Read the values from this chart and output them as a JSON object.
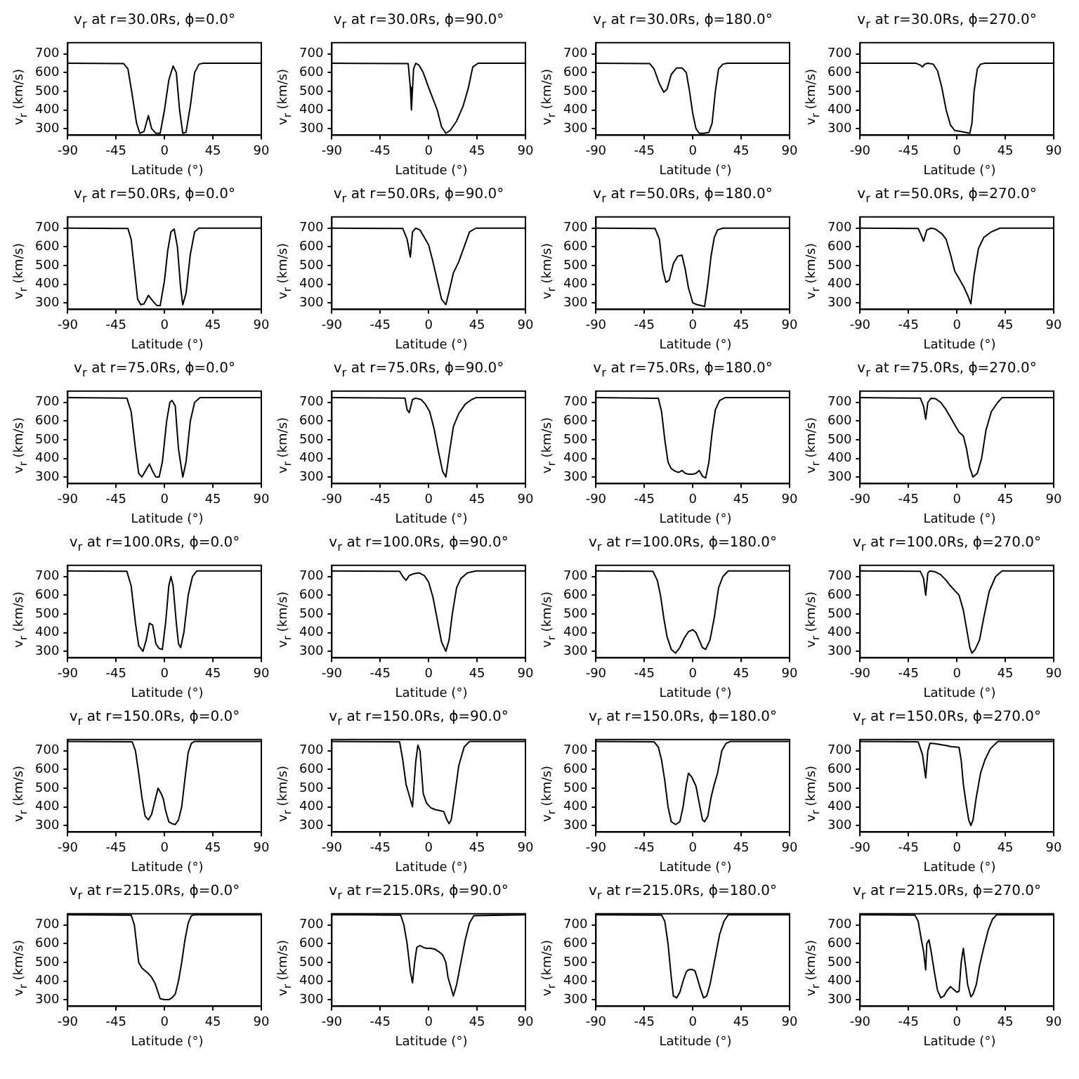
{
  "chart_data": [
    {
      "type": "line",
      "title": "v$_{r}$ at r=30.0Rs, ϕ=0.0°",
      "xlabel": "Latitude (°)",
      "ylabel": "v$_{r}$ (km/s)",
      "color": "#000000",
      "xlim": [
        -90,
        90
      ],
      "xticks": [
        -90,
        -45,
        0,
        45,
        90
      ],
      "ylim": [
        265,
        760
      ],
      "yticks": [
        300,
        400,
        500,
        600,
        700
      ],
      "grid": false,
      "x": [
        -90,
        -38,
        -34,
        -30,
        -26,
        -23,
        -19,
        -15,
        -12,
        -8,
        -4,
        0,
        4,
        8,
        11,
        14,
        17,
        20,
        24,
        28,
        32,
        36,
        90
      ],
      "values": [
        650,
        648,
        620,
        480,
        330,
        275,
        285,
        370,
        300,
        275,
        275,
        400,
        560,
        635,
        600,
        400,
        275,
        280,
        420,
        600,
        645,
        650,
        650
      ]
    },
    {
      "type": "line",
      "title": "v$_{r}$ at r=30.0Rs, ϕ=90.0°",
      "xlabel": "Latitude (°)",
      "ylabel": "v$_{r}$ (km/s)",
      "color": "#000000",
      "xlim": [
        -90,
        90
      ],
      "xticks": [
        -90,
        -45,
        0,
        45,
        90
      ],
      "ylim": [
        265,
        760
      ],
      "yticks": [
        300,
        400,
        500,
        600,
        700
      ],
      "grid": false,
      "x": [
        -90,
        -19,
        -17,
        -16,
        -14,
        -12,
        -9,
        -5,
        0,
        4,
        8,
        12,
        16,
        20,
        26,
        32,
        37,
        41,
        46,
        90
      ],
      "values": [
        650,
        648,
        520,
        400,
        620,
        650,
        640,
        600,
        520,
        460,
        400,
        310,
        275,
        290,
        340,
        420,
        520,
        630,
        650,
        650
      ]
    },
    {
      "type": "line",
      "title": "v$_{r}$ at r=30.0Rs, ϕ=180.0°",
      "xlabel": "Latitude (°)",
      "ylabel": "v$_{r}$ (km/s)",
      "color": "#000000",
      "xlim": [
        -90,
        90
      ],
      "xticks": [
        -90,
        -45,
        0,
        45,
        90
      ],
      "ylim": [
        265,
        760
      ],
      "yticks": [
        300,
        400,
        500,
        600,
        700
      ],
      "grid": false,
      "x": [
        -90,
        -40,
        -36,
        -31,
        -27,
        -24,
        -20,
        -15,
        -10,
        -6,
        -3,
        0,
        3,
        6,
        10,
        15,
        18,
        21,
        24,
        28,
        32,
        90
      ],
      "values": [
        650,
        648,
        620,
        540,
        495,
        510,
        590,
        625,
        625,
        600,
        500,
        380,
        300,
        275,
        275,
        280,
        330,
        500,
        620,
        645,
        650,
        650
      ]
    },
    {
      "type": "line",
      "title": "v$_{r}$ at r=30.0Rs, ϕ=270.0°",
      "xlabel": "Latitude (°)",
      "ylabel": "v$_{r}$ (km/s)",
      "color": "#000000",
      "xlim": [
        -90,
        90
      ],
      "xticks": [
        -90,
        -45,
        0,
        45,
        90
      ],
      "ylim": [
        265,
        760
      ],
      "yticks": [
        300,
        400,
        500,
        600,
        700
      ],
      "grid": false,
      "x": [
        -90,
        -38,
        -34,
        -32,
        -30,
        -27,
        -22,
        -18,
        -14,
        -10,
        -6,
        -2,
        3,
        8,
        12,
        14,
        16,
        19,
        22,
        26,
        90
      ],
      "values": [
        650,
        650,
        640,
        630,
        645,
        650,
        645,
        610,
        520,
        400,
        320,
        290,
        285,
        280,
        275,
        330,
        500,
        620,
        645,
        650,
        650
      ]
    },
    {
      "type": "line",
      "title": "v$_{r}$ at r=50.0Rs, ϕ=0.0°",
      "xlabel": "Latitude (°)",
      "ylabel": "v$_{r}$ (km/s)",
      "color": "#000000",
      "xlim": [
        -90,
        90
      ],
      "xticks": [
        -90,
        -45,
        0,
        45,
        90
      ],
      "ylim": [
        265,
        760
      ],
      "yticks": [
        300,
        400,
        500,
        600,
        700
      ],
      "grid": false,
      "x": [
        -90,
        -34,
        -31,
        -28,
        -25,
        -22,
        -19,
        -15,
        -11,
        -7,
        -4,
        0,
        3,
        6,
        9,
        12,
        15,
        17,
        20,
        24,
        28,
        32,
        90
      ],
      "values": [
        700,
        698,
        640,
        480,
        320,
        290,
        295,
        340,
        310,
        285,
        285,
        420,
        580,
        680,
        695,
        600,
        380,
        290,
        350,
        560,
        680,
        700,
        700
      ]
    },
    {
      "type": "line",
      "title": "v$_{r}$ at r=50.0Rs, ϕ=90.0°",
      "xlabel": "Latitude (°)",
      "ylabel": "v$_{r}$ (km/s)",
      "color": "#000000",
      "xlim": [
        -90,
        90
      ],
      "xticks": [
        -90,
        -45,
        0,
        45,
        90
      ],
      "ylim": [
        265,
        760
      ],
      "yticks": [
        300,
        400,
        500,
        600,
        700
      ],
      "grid": false,
      "x": [
        -90,
        -24,
        -20,
        -17,
        -15,
        -12,
        -8,
        -4,
        0,
        4,
        8,
        12,
        16,
        19,
        23,
        28,
        33,
        38,
        44,
        90
      ],
      "values": [
        700,
        698,
        640,
        545,
        680,
        700,
        690,
        650,
        610,
        520,
        420,
        320,
        290,
        360,
        460,
        520,
        600,
        680,
        700,
        700
      ]
    },
    {
      "type": "line",
      "title": "v$_{r}$ at r=50.0Rs, ϕ=180.0°",
      "xlabel": "Latitude (°)",
      "ylabel": "v$_{r}$ (km/s)",
      "color": "#000000",
      "xlim": [
        -90,
        90
      ],
      "xticks": [
        -90,
        -45,
        0,
        45,
        90
      ],
      "ylim": [
        265,
        760
      ],
      "yticks": [
        300,
        400,
        500,
        600,
        700
      ],
      "grid": false,
      "x": [
        -90,
        -35,
        -31,
        -28,
        -25,
        -22,
        -18,
        -14,
        -10,
        -7,
        -4,
        0,
        4,
        8,
        11,
        14,
        17,
        20,
        23,
        28,
        90
      ],
      "values": [
        700,
        698,
        640,
        480,
        410,
        420,
        510,
        550,
        555,
        480,
        380,
        300,
        290,
        285,
        280,
        400,
        550,
        650,
        690,
        700,
        700
      ]
    },
    {
      "type": "line",
      "title": "v$_{r}$ at r=50.0Rs, ϕ=270.0°",
      "xlabel": "Latitude (°)",
      "ylabel": "v$_{r}$ (km/s)",
      "color": "#000000",
      "xlim": [
        -90,
        90
      ],
      "xticks": [
        -90,
        -45,
        0,
        45,
        90
      ],
      "ylim": [
        265,
        760
      ],
      "yticks": [
        300,
        400,
        500,
        600,
        700
      ],
      "grid": false,
      "x": [
        -90,
        -36,
        -33,
        -31,
        -28,
        -24,
        -20,
        -14,
        -10,
        -6,
        -2,
        2,
        6,
        10,
        13,
        16,
        20,
        25,
        32,
        40,
        90
      ],
      "values": [
        700,
        698,
        660,
        630,
        690,
        700,
        695,
        670,
        640,
        560,
        470,
        430,
        390,
        340,
        295,
        450,
        590,
        650,
        680,
        700,
        700
      ]
    },
    {
      "type": "line",
      "title": "v$_{r}$ at r=75.0Rs, ϕ=0.0°",
      "xlabel": "Latitude (°)",
      "ylabel": "v$_{r}$ (km/s)",
      "color": "#000000",
      "xlim": [
        -90,
        90
      ],
      "xticks": [
        -90,
        -45,
        0,
        45,
        90
      ],
      "ylim": [
        265,
        760
      ],
      "yticks": [
        300,
        400,
        500,
        600,
        700
      ],
      "grid": false,
      "x": [
        -90,
        -35,
        -31,
        -27,
        -24,
        -21,
        -17,
        -14,
        -11,
        -8,
        -5,
        -2,
        2,
        5,
        7,
        10,
        13,
        17,
        20,
        24,
        28,
        33,
        90
      ],
      "values": [
        725,
        723,
        650,
        450,
        320,
        300,
        340,
        370,
        330,
        300,
        300,
        380,
        600,
        700,
        710,
        680,
        450,
        300,
        380,
        600,
        700,
        725,
        725
      ]
    },
    {
      "type": "line",
      "title": "v$_{r}$ at r=75.0Rs, ϕ=90.0°",
      "xlabel": "Latitude (°)",
      "ylabel": "v$_{r}$ (km/s)",
      "color": "#000000",
      "xlim": [
        -90,
        90
      ],
      "xticks": [
        -90,
        -45,
        0,
        45,
        90
      ],
      "ylim": [
        265,
        760
      ],
      "yticks": [
        300,
        400,
        500,
        600,
        700
      ],
      "grid": false,
      "x": [
        -90,
        -22,
        -20,
        -18,
        -15,
        -12,
        -7,
        -3,
        1,
        5,
        9,
        13,
        16,
        19,
        23,
        28,
        34,
        40,
        44,
        90
      ],
      "values": [
        725,
        723,
        660,
        645,
        715,
        722,
        715,
        690,
        650,
        560,
        440,
        330,
        300,
        420,
        570,
        640,
        690,
        715,
        725,
        725
      ]
    },
    {
      "type": "line",
      "title": "v$_{r}$ at r=75.0Rs, ϕ=180.0°",
      "xlabel": "Latitude (°)",
      "ylabel": "v$_{r}$ (km/s)",
      "color": "#000000",
      "xlim": [
        -90,
        90
      ],
      "xticks": [
        -90,
        -45,
        0,
        45,
        90
      ],
      "ylim": [
        265,
        760
      ],
      "yticks": [
        300,
        400,
        500,
        600,
        700
      ],
      "grid": false,
      "x": [
        -90,
        -32,
        -29,
        -26,
        -23,
        -20,
        -16,
        -13,
        -10,
        -7,
        -4,
        0,
        3,
        6,
        9,
        12,
        15,
        18,
        21,
        25,
        30,
        90
      ],
      "values": [
        725,
        722,
        650,
        500,
        380,
        345,
        330,
        325,
        335,
        320,
        315,
        315,
        320,
        335,
        305,
        295,
        380,
        540,
        660,
        710,
        725,
        725
      ]
    },
    {
      "type": "line",
      "title": "v$_{r}$ at r=75.0Rs, ϕ=270.0°",
      "xlabel": "Latitude (°)",
      "ylabel": "v$_{r}$ (km/s)",
      "color": "#000000",
      "xlim": [
        -90,
        90
      ],
      "xticks": [
        -90,
        -45,
        0,
        45,
        90
      ],
      "ylim": [
        265,
        760
      ],
      "yticks": [
        300,
        400,
        500,
        600,
        700
      ],
      "grid": false,
      "x": [
        -90,
        -34,
        -31,
        -29,
        -27,
        -24,
        -20,
        -15,
        -10,
        -6,
        -2,
        2,
        6,
        9,
        12,
        15,
        19,
        23,
        27,
        32,
        38,
        42,
        90
      ],
      "values": [
        725,
        723,
        680,
        610,
        700,
        722,
        720,
        700,
        660,
        620,
        580,
        540,
        520,
        450,
        350,
        300,
        320,
        400,
        550,
        650,
        700,
        725,
        725
      ]
    },
    {
      "type": "line",
      "title": "v$_{r}$ at r=100.0Rs, ϕ=0.0°",
      "xlabel": "Latitude (°)",
      "ylabel": "v$_{r}$ (km/s)",
      "color": "#000000",
      "xlim": [
        -90,
        90
      ],
      "xticks": [
        -90,
        -45,
        0,
        45,
        90
      ],
      "ylim": [
        265,
        760
      ],
      "yticks": [
        300,
        400,
        500,
        600,
        700
      ],
      "grid": false,
      "x": [
        -90,
        -35,
        -31,
        -27,
        -24,
        -20,
        -17,
        -14,
        -11,
        -8,
        -5,
        -2,
        1,
        4,
        6,
        8,
        11,
        13,
        15,
        18,
        22,
        26,
        30,
        90
      ],
      "values": [
        730,
        728,
        650,
        450,
        330,
        300,
        360,
        450,
        440,
        340,
        315,
        310,
        450,
        650,
        700,
        650,
        450,
        340,
        320,
        400,
        600,
        700,
        730,
        730
      ]
    },
    {
      "type": "line",
      "title": "v$_{r}$ at r=100.0Rs, ϕ=90.0°",
      "xlabel": "Latitude (°)",
      "ylabel": "v$_{r}$ (km/s)",
      "color": "#000000",
      "xlim": [
        -90,
        90
      ],
      "xticks": [
        -90,
        -45,
        0,
        45,
        90
      ],
      "ylim": [
        265,
        760
      ],
      "yticks": [
        300,
        400,
        500,
        600,
        700
      ],
      "grid": false,
      "x": [
        -90,
        -27,
        -24,
        -21,
        -18,
        -14,
        -9,
        -4,
        0,
        4,
        8,
        12,
        16,
        19,
        22,
        26,
        30,
        36,
        44,
        90
      ],
      "values": [
        730,
        728,
        700,
        680,
        705,
        715,
        720,
        705,
        670,
        590,
        470,
        350,
        300,
        360,
        500,
        640,
        690,
        720,
        730,
        730
      ]
    },
    {
      "type": "line",
      "title": "v$_{r}$ at r=100.0Rs, ϕ=180.0°",
      "xlabel": "Latitude (°)",
      "ylabel": "v$_{r}$ (km/s)",
      "color": "#000000",
      "xlim": [
        -90,
        90
      ],
      "xticks": [
        -90,
        -45,
        0,
        45,
        90
      ],
      "ylim": [
        265,
        760
      ],
      "yticks": [
        300,
        400,
        500,
        600,
        700
      ],
      "grid": false,
      "x": [
        -90,
        -37,
        -33,
        -30,
        -27,
        -24,
        -20,
        -16,
        -12,
        -8,
        -4,
        0,
        3,
        6,
        9,
        12,
        16,
        20,
        24,
        28,
        33,
        90
      ],
      "values": [
        730,
        728,
        680,
        600,
        480,
        380,
        310,
        290,
        320,
        370,
        405,
        415,
        400,
        360,
        320,
        310,
        360,
        480,
        640,
        700,
        730,
        730
      ]
    },
    {
      "type": "line",
      "title": "v$_{r}$ at r=100.0Rs, ϕ=270.0°",
      "xlabel": "Latitude (°)",
      "ylabel": "v$_{r}$ (km/s)",
      "color": "#000000",
      "xlim": [
        -90,
        90
      ],
      "xticks": [
        -90,
        -45,
        0,
        45,
        90
      ],
      "ylim": [
        265,
        760
      ],
      "yticks": [
        300,
        400,
        500,
        600,
        700
      ],
      "grid": false,
      "x": [
        -90,
        -34,
        -31,
        -29,
        -27,
        -25,
        -20,
        -15,
        -10,
        -6,
        -2,
        2,
        6,
        9,
        12,
        14,
        17,
        21,
        25,
        30,
        36,
        42,
        90
      ],
      "values": [
        730,
        728,
        690,
        600,
        720,
        730,
        725,
        710,
        680,
        650,
        625,
        600,
        520,
        420,
        320,
        290,
        310,
        360,
        480,
        620,
        700,
        730,
        730
      ]
    },
    {
      "type": "line",
      "title": "v$_{r}$ at r=150.0Rs, ϕ=0.0°",
      "xlabel": "Latitude (°)",
      "ylabel": "v$_{r}$ (km/s)",
      "color": "#000000",
      "xlim": [
        -90,
        90
      ],
      "xticks": [
        -90,
        -45,
        0,
        45,
        90
      ],
      "ylim": [
        265,
        760
      ],
      "yticks": [
        300,
        400,
        500,
        600,
        700
      ],
      "grid": false,
      "x": [
        -90,
        -30,
        -27,
        -24,
        -21,
        -18,
        -15,
        -12,
        -9,
        -6,
        -3,
        -1,
        1,
        4,
        7,
        10,
        13,
        16,
        19,
        22,
        25,
        28,
        90
      ],
      "values": [
        750,
        748,
        700,
        580,
        450,
        350,
        330,
        360,
        430,
        500,
        470,
        440,
        380,
        320,
        310,
        305,
        330,
        400,
        550,
        690,
        740,
        750,
        750
      ]
    },
    {
      "type": "line",
      "title": "v$_{r}$ at r=150.0Rs, ϕ=90.0°",
      "xlabel": "Latitude (°)",
      "ylabel": "v$_{r}$ (km/s)",
      "color": "#000000",
      "xlim": [
        -90,
        90
      ],
      "xticks": [
        -90,
        -45,
        0,
        45,
        90
      ],
      "ylim": [
        265,
        760
      ],
      "yticks": [
        300,
        400,
        500,
        600,
        700
      ],
      "grid": false,
      "x": [
        -90,
        -27,
        -24,
        -21,
        -18,
        -15,
        -12,
        -10,
        -8,
        -5,
        -2,
        2,
        6,
        10,
        14,
        17,
        19,
        21,
        24,
        28,
        33,
        38,
        90
      ],
      "values": [
        750,
        748,
        650,
        520,
        460,
        400,
        640,
        730,
        700,
        470,
        420,
        395,
        385,
        380,
        375,
        330,
        310,
        330,
        450,
        620,
        720,
        750,
        750
      ]
    },
    {
      "type": "line",
      "title": "v$_{r}$ at r=150.0Rs, ϕ=180.0°",
      "xlabel": "Latitude (°)",
      "ylabel": "v$_{r}$ (km/s)",
      "color": "#000000",
      "xlim": [
        -90,
        90
      ],
      "xticks": [
        -90,
        -45,
        0,
        45,
        90
      ],
      "ylim": [
        265,
        760
      ],
      "yticks": [
        300,
        400,
        500,
        600,
        700
      ],
      "grid": false,
      "x": [
        -90,
        -36,
        -32,
        -29,
        -26,
        -23,
        -20,
        -16,
        -12,
        -9,
        -6,
        -4,
        -1,
        3,
        6,
        9,
        11,
        14,
        17,
        20,
        23,
        27,
        31,
        35,
        90
      ],
      "values": [
        750,
        748,
        720,
        650,
        540,
        400,
        320,
        305,
        320,
        400,
        520,
        580,
        560,
        510,
        420,
        330,
        320,
        350,
        450,
        520,
        580,
        700,
        740,
        750,
        750
      ]
    },
    {
      "type": "line",
      "title": "v$_{r}$ at r=150.0Rs, ϕ=270.0°",
      "xlabel": "Latitude (°)",
      "ylabel": "v$_{r}$ (km/s)",
      "color": "#000000",
      "xlim": [
        -90,
        90
      ],
      "xticks": [
        -90,
        -45,
        0,
        45,
        90
      ],
      "ylim": [
        265,
        760
      ],
      "yticks": [
        300,
        400,
        500,
        600,
        700
      ],
      "grid": false,
      "x": [
        -90,
        -36,
        -32,
        -29,
        -27,
        -25,
        -20,
        -15,
        -10,
        -5,
        0,
        2,
        4,
        6,
        9,
        11,
        13,
        15,
        18,
        22,
        26,
        31,
        38,
        90
      ],
      "values": [
        750,
        748,
        680,
        555,
        700,
        740,
        738,
        733,
        728,
        722,
        720,
        718,
        650,
        520,
        400,
        330,
        300,
        330,
        450,
        580,
        650,
        710,
        750,
        750
      ]
    },
    {
      "type": "line",
      "title": "v$_{r}$ at r=215.0Rs, ϕ=0.0°",
      "xlabel": "Latitude (°)",
      "ylabel": "v$_{r}$ (km/s)",
      "color": "#000000",
      "xlim": [
        -90,
        90
      ],
      "xticks": [
        -90,
        -45,
        0,
        45,
        90
      ],
      "ylim": [
        265,
        760
      ],
      "yticks": [
        300,
        400,
        500,
        600,
        700
      ],
      "grid": false,
      "x": [
        -90,
        -31,
        -28,
        -26,
        -24,
        -21,
        -18,
        -15,
        -12,
        -9,
        -6,
        -4,
        0,
        4,
        7,
        10,
        13,
        16,
        19,
        22,
        25,
        28,
        90
      ],
      "values": [
        755,
        753,
        700,
        600,
        500,
        470,
        455,
        440,
        420,
        390,
        340,
        305,
        300,
        300,
        310,
        330,
        400,
        500,
        620,
        710,
        750,
        755,
        755
      ]
    },
    {
      "type": "line",
      "title": "v$_{r}$ at r=215.0Rs, ϕ=90.0°",
      "xlabel": "Latitude (°)",
      "ylabel": "v$_{r}$ (km/s)",
      "color": "#000000",
      "xlim": [
        -90,
        90
      ],
      "xticks": [
        -90,
        -45,
        0,
        45,
        90
      ],
      "ylim": [
        265,
        760
      ],
      "yticks": [
        300,
        400,
        500,
        600,
        700
      ],
      "grid": false,
      "x": [
        -90,
        -26,
        -23,
        -20,
        -17,
        -15,
        -13,
        -11,
        -8,
        -5,
        -2,
        2,
        6,
        10,
        13,
        16,
        18,
        20,
        23,
        26,
        30,
        34,
        38,
        42,
        90
      ],
      "values": [
        755,
        753,
        700,
        600,
        450,
        390,
        500,
        580,
        590,
        580,
        575,
        575,
        570,
        555,
        540,
        500,
        420,
        380,
        320,
        380,
        500,
        620,
        710,
        750,
        755
      ]
    },
    {
      "type": "line",
      "title": "v$_{r}$ at r=215.0Rs, ϕ=180.0°",
      "xlabel": "Latitude (°)",
      "ylabel": "v$_{r}$ (km/s)",
      "color": "#000000",
      "xlim": [
        -90,
        90
      ],
      "xticks": [
        -90,
        -45,
        0,
        45,
        90
      ],
      "ylim": [
        265,
        760
      ],
      "yticks": [
        300,
        400,
        500,
        600,
        700
      ],
      "grid": false,
      "x": [
        -90,
        -29,
        -26,
        -23,
        -20,
        -18,
        -15,
        -12,
        -9,
        -6,
        -4,
        -1,
        2,
        4,
        7,
        10,
        13,
        16,
        19,
        22,
        25,
        29,
        33,
        90
      ],
      "values": [
        755,
        753,
        720,
        600,
        420,
        320,
        310,
        340,
        400,
        450,
        460,
        462,
        455,
        420,
        360,
        310,
        320,
        380,
        470,
        560,
        650,
        720,
        755,
        755
      ]
    },
    {
      "type": "line",
      "title": "v$_{r}$ at r=215.0Rs, ϕ=270.0°",
      "xlabel": "Latitude (°)",
      "ylabel": "v$_{r}$ (km/s)",
      "color": "#000000",
      "xlim": [
        -90,
        90
      ],
      "xticks": [
        -90,
        -45,
        0,
        45,
        90
      ],
      "ylim": [
        265,
        760
      ],
      "yticks": [
        300,
        400,
        500,
        600,
        700
      ],
      "grid": false,
      "x": [
        -90,
        -39,
        -36,
        -33,
        -31,
        -29,
        -28,
        -26,
        -24,
        -21,
        -18,
        -15,
        -12,
        -9,
        -6,
        -3,
        0,
        2,
        4,
        6,
        8,
        10,
        13,
        15,
        18,
        21,
        25,
        29,
        33,
        37,
        90
      ],
      "values": [
        755,
        753,
        720,
        620,
        560,
        460,
        600,
        620,
        560,
        450,
        350,
        310,
        320,
        350,
        370,
        355,
        340,
        345,
        500,
        575,
        480,
        380,
        315,
        330,
        380,
        480,
        580,
        670,
        730,
        755,
        755
      ]
    }
  ]
}
